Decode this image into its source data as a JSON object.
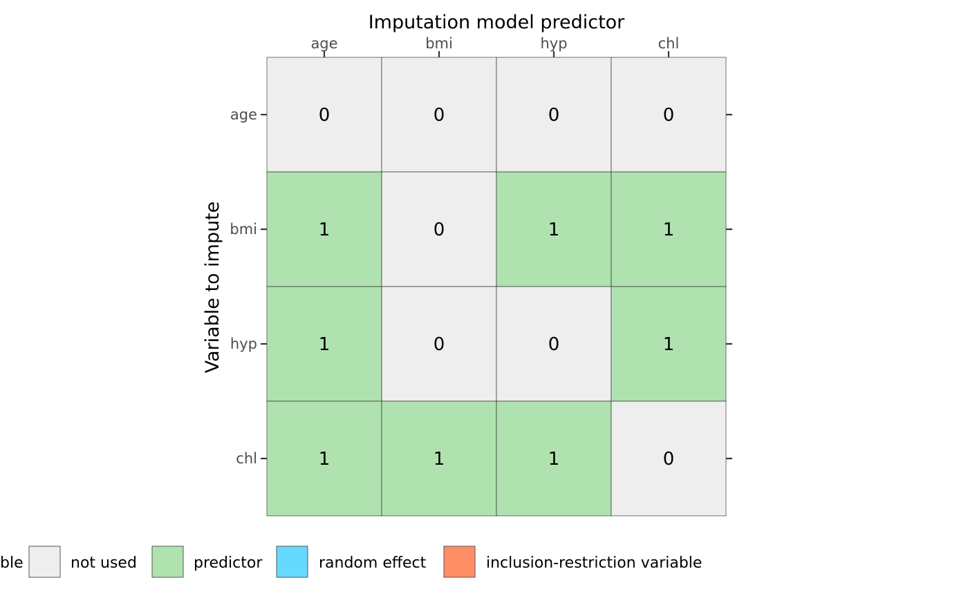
{
  "chart_data": {
    "type": "heatmap",
    "title": "Imputation model predictor",
    "xlabel": "Imputation model predictor",
    "ylabel": "Variable to impute",
    "x_categories": [
      "age",
      "bmi",
      "hyp",
      "chl"
    ],
    "y_categories": [
      "age",
      "bmi",
      "hyp",
      "chl"
    ],
    "values": [
      [
        0,
        0,
        0,
        0
      ],
      [
        1,
        0,
        1,
        1
      ],
      [
        1,
        0,
        0,
        1
      ],
      [
        1,
        1,
        1,
        0
      ]
    ],
    "cell_roles": [
      [
        "not used",
        "not used",
        "not used",
        "not used"
      ],
      [
        "predictor",
        "not used",
        "predictor",
        "predictor"
      ],
      [
        "predictor",
        "not used",
        "not used",
        "predictor"
      ],
      [
        "predictor",
        "predictor",
        "predictor",
        "not used"
      ]
    ],
    "legend": {
      "placement": "bottom",
      "clipped_first_label": "ble",
      "items": [
        {
          "label": "not used",
          "color": "#EEEEEE"
        },
        {
          "label": "predictor",
          "color": "#B0E2B0"
        },
        {
          "label": "random effect",
          "color": "#66D9FF"
        },
        {
          "label": "inclusion-restriction variable",
          "color": "#FF8E66"
        }
      ]
    },
    "grid": false
  }
}
